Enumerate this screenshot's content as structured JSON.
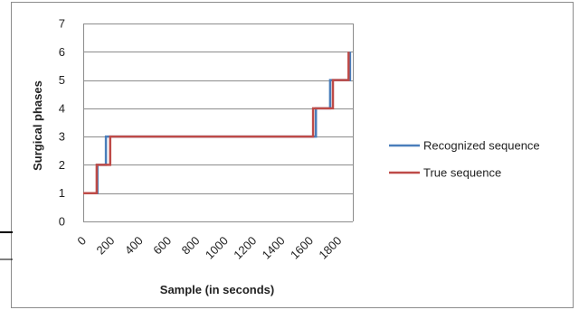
{
  "chart_data": {
    "type": "line",
    "xlabel": "Sample (in seconds)",
    "ylabel": "Surgical phases",
    "xlim": [
      0,
      1900
    ],
    "ylim": [
      0,
      7
    ],
    "x_ticks": [
      0,
      200,
      400,
      600,
      800,
      1000,
      1200,
      1400,
      1600,
      1800
    ],
    "y_ticks": [
      0,
      1,
      2,
      3,
      4,
      5,
      6,
      7
    ],
    "grid": "horizontal",
    "legend_position": "right",
    "series": [
      {
        "name": "Recognized sequence",
        "color": "#4a7ebb",
        "x": [
          0,
          100,
          100,
          160,
          160,
          1640,
          1640,
          1740,
          1740,
          1880,
          1880
        ],
        "y": [
          1,
          1,
          2,
          2,
          3,
          3,
          4,
          4,
          5,
          5,
          6
        ]
      },
      {
        "name": "True sequence",
        "color": "#be4b48",
        "x": [
          0,
          95,
          95,
          190,
          190,
          1620,
          1620,
          1760,
          1760,
          1870,
          1870
        ],
        "y": [
          1,
          1,
          2,
          2,
          3,
          3,
          4,
          4,
          5,
          5,
          6
        ]
      }
    ]
  }
}
